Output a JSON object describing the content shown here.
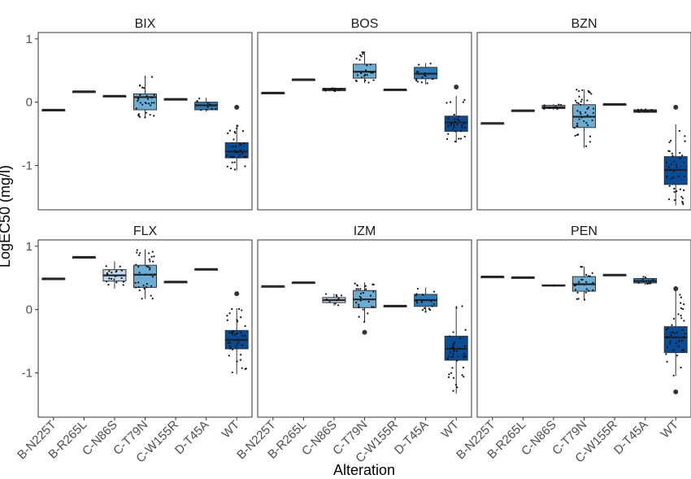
{
  "chart_data": {
    "type": "boxplot",
    "title": "",
    "xlabel": "Alteration",
    "ylabel": "LogEC50 (mg/l)",
    "ylim": [
      -1.7,
      1.1
    ],
    "y_ticks": [
      1,
      0,
      -1
    ],
    "grid": false,
    "legend": "none",
    "categories": [
      "B-N225T",
      "B-R265L",
      "C-N86S",
      "C-T79N",
      "C-W155R",
      "D-T45A",
      "WT"
    ],
    "category_colors": [
      "#bfd8ee",
      "#bfd8ee",
      "#bfd8ee",
      "#6aaed6",
      "#5ba1d2",
      "#2b7bba",
      "#084c96"
    ],
    "panels": [
      {
        "name": "BIX",
        "boxes": [
          {
            "category": "B-N225T",
            "q1": -0.12,
            "median": -0.12,
            "q3": -0.12,
            "whisker_low": -0.12,
            "whisker_high": -0.12,
            "outliers": []
          },
          {
            "category": "B-R265L",
            "q1": 0.17,
            "median": 0.17,
            "q3": 0.17,
            "whisker_low": 0.17,
            "whisker_high": 0.17,
            "outliers": []
          },
          {
            "category": "C-N86S",
            "q1": 0.1,
            "median": 0.1,
            "q3": 0.1,
            "whisker_low": 0.1,
            "whisker_high": 0.1,
            "outliers": []
          },
          {
            "category": "C-T79N",
            "q1": -0.12,
            "median": 0.08,
            "q3": 0.13,
            "whisker_low": -0.25,
            "whisker_high": 0.42,
            "outliers": []
          },
          {
            "category": "C-W155R",
            "q1": 0.05,
            "median": 0.05,
            "q3": 0.05,
            "whisker_low": 0.05,
            "whisker_high": 0.05,
            "outliers": []
          },
          {
            "category": "D-T45A",
            "q1": -0.12,
            "median": -0.05,
            "q3": 0.0,
            "whisker_low": -0.15,
            "whisker_high": 0.07,
            "outliers": []
          },
          {
            "category": "WT",
            "q1": -0.88,
            "median": -0.78,
            "q3": -0.64,
            "whisker_low": -1.08,
            "whisker_high": -0.35,
            "outliers": [
              -0.08
            ]
          }
        ]
      },
      {
        "name": "BOS",
        "boxes": [
          {
            "category": "B-N225T",
            "q1": 0.15,
            "median": 0.15,
            "q3": 0.15,
            "whisker_low": 0.15,
            "whisker_high": 0.15,
            "outliers": []
          },
          {
            "category": "B-R265L",
            "q1": 0.36,
            "median": 0.36,
            "q3": 0.36,
            "whisker_low": 0.36,
            "whisker_high": 0.36,
            "outliers": []
          },
          {
            "category": "C-N86S",
            "q1": 0.18,
            "median": 0.2,
            "q3": 0.22,
            "whisker_low": 0.17,
            "whisker_high": 0.23,
            "outliers": []
          },
          {
            "category": "C-T79N",
            "q1": 0.38,
            "median": 0.48,
            "q3": 0.6,
            "whisker_low": 0.3,
            "whisker_high": 0.8,
            "outliers": []
          },
          {
            "category": "C-W155R",
            "q1": 0.2,
            "median": 0.2,
            "q3": 0.2,
            "whisker_low": 0.2,
            "whisker_high": 0.2,
            "outliers": []
          },
          {
            "category": "D-T45A",
            "q1": 0.37,
            "median": 0.45,
            "q3": 0.55,
            "whisker_low": 0.28,
            "whisker_high": 0.62,
            "outliers": []
          },
          {
            "category": "WT",
            "q1": -0.46,
            "median": -0.32,
            "q3": -0.22,
            "whisker_low": -0.64,
            "whisker_high": 0.1,
            "outliers": [
              0.24
            ]
          }
        ]
      },
      {
        "name": "BZN",
        "boxes": [
          {
            "category": "B-N225T",
            "q1": -0.33,
            "median": -0.33,
            "q3": -0.33,
            "whisker_low": -0.33,
            "whisker_high": -0.33,
            "outliers": []
          },
          {
            "category": "B-R265L",
            "q1": -0.13,
            "median": -0.13,
            "q3": -0.13,
            "whisker_low": -0.13,
            "whisker_high": -0.13,
            "outliers": []
          },
          {
            "category": "C-N86S",
            "q1": -0.1,
            "median": -0.08,
            "q3": -0.05,
            "whisker_low": -0.12,
            "whisker_high": -0.03,
            "outliers": []
          },
          {
            "category": "C-T79N",
            "q1": -0.4,
            "median": -0.23,
            "q3": -0.04,
            "whisker_low": -0.72,
            "whisker_high": 0.2,
            "outliers": []
          },
          {
            "category": "C-W155R",
            "q1": -0.03,
            "median": -0.03,
            "q3": -0.03,
            "whisker_low": -0.03,
            "whisker_high": -0.03,
            "outliers": []
          },
          {
            "category": "D-T45A",
            "q1": -0.16,
            "median": -0.14,
            "q3": -0.12,
            "whisker_low": -0.17,
            "whisker_high": -0.11,
            "outliers": []
          },
          {
            "category": "WT",
            "q1": -1.3,
            "median": -1.07,
            "q3": -0.86,
            "whisker_low": -1.63,
            "whisker_high": -0.35,
            "outliers": [
              -0.08
            ]
          }
        ]
      },
      {
        "name": "FLX",
        "boxes": [
          {
            "category": "B-N225T",
            "q1": 0.49,
            "median": 0.49,
            "q3": 0.49,
            "whisker_low": 0.49,
            "whisker_high": 0.49,
            "outliers": []
          },
          {
            "category": "B-R265L",
            "q1": 0.83,
            "median": 0.83,
            "q3": 0.83,
            "whisker_low": 0.83,
            "whisker_high": 0.83,
            "outliers": []
          },
          {
            "category": "C-N86S",
            "q1": 0.45,
            "median": 0.54,
            "q3": 0.63,
            "whisker_low": 0.33,
            "whisker_high": 0.76,
            "outliers": []
          },
          {
            "category": "C-T79N",
            "q1": 0.35,
            "median": 0.55,
            "q3": 0.7,
            "whisker_low": 0.17,
            "whisker_high": 0.95,
            "outliers": []
          },
          {
            "category": "C-W155R",
            "q1": 0.44,
            "median": 0.44,
            "q3": 0.44,
            "whisker_low": 0.44,
            "whisker_high": 0.44,
            "outliers": []
          },
          {
            "category": "D-T45A",
            "q1": 0.64,
            "median": 0.64,
            "q3": 0.64,
            "whisker_low": 0.64,
            "whisker_high": 0.64,
            "outliers": []
          },
          {
            "category": "WT",
            "q1": -0.62,
            "median": -0.48,
            "q3": -0.33,
            "whisker_low": -1.02,
            "whisker_high": 0.02,
            "outliers": [
              0.25
            ]
          }
        ]
      },
      {
        "name": "IZM",
        "boxes": [
          {
            "category": "B-N225T",
            "q1": 0.37,
            "median": 0.37,
            "q3": 0.37,
            "whisker_low": 0.37,
            "whisker_high": 0.37,
            "outliers": []
          },
          {
            "category": "B-R265L",
            "q1": 0.43,
            "median": 0.43,
            "q3": 0.43,
            "whisker_low": 0.43,
            "whisker_high": 0.43,
            "outliers": []
          },
          {
            "category": "C-N86S",
            "q1": 0.11,
            "median": 0.15,
            "q3": 0.19,
            "whisker_low": 0.06,
            "whisker_high": 0.25,
            "outliers": []
          },
          {
            "category": "C-T79N",
            "q1": 0.03,
            "median": 0.16,
            "q3": 0.3,
            "whisker_low": -0.2,
            "whisker_high": 0.43,
            "outliers": [
              -0.36
            ]
          },
          {
            "category": "C-W155R",
            "q1": 0.06,
            "median": 0.06,
            "q3": 0.06,
            "whisker_low": 0.06,
            "whisker_high": 0.06,
            "outliers": []
          },
          {
            "category": "D-T45A",
            "q1": 0.05,
            "median": 0.15,
            "q3": 0.24,
            "whisker_low": -0.05,
            "whisker_high": 0.35,
            "outliers": []
          },
          {
            "category": "WT",
            "q1": -0.8,
            "median": -0.62,
            "q3": -0.42,
            "whisker_low": -1.33,
            "whisker_high": 0.06,
            "outliers": []
          }
        ]
      },
      {
        "name": "PEN",
        "boxes": [
          {
            "category": "B-N225T",
            "q1": 0.52,
            "median": 0.52,
            "q3": 0.52,
            "whisker_low": 0.52,
            "whisker_high": 0.52,
            "outliers": []
          },
          {
            "category": "B-R265L",
            "q1": 0.51,
            "median": 0.51,
            "q3": 0.51,
            "whisker_low": 0.51,
            "whisker_high": 0.51,
            "outliers": []
          },
          {
            "category": "C-N86S",
            "q1": 0.37,
            "median": 0.38,
            "q3": 0.39,
            "whisker_low": 0.36,
            "whisker_high": 0.4,
            "outliers": []
          },
          {
            "category": "C-T79N",
            "q1": 0.29,
            "median": 0.4,
            "q3": 0.52,
            "whisker_low": 0.15,
            "whisker_high": 0.68,
            "outliers": []
          },
          {
            "category": "C-W155R",
            "q1": 0.55,
            "median": 0.55,
            "q3": 0.55,
            "whisker_low": 0.55,
            "whisker_high": 0.55,
            "outliers": []
          },
          {
            "category": "D-T45A",
            "q1": 0.42,
            "median": 0.45,
            "q3": 0.49,
            "whisker_low": 0.39,
            "whisker_high": 0.52,
            "outliers": []
          },
          {
            "category": "WT",
            "q1": -0.68,
            "median": -0.44,
            "q3": -0.27,
            "whisker_low": -1.05,
            "whisker_high": 0.3,
            "outliers": [
              0.33,
              -1.3
            ]
          }
        ]
      }
    ]
  }
}
